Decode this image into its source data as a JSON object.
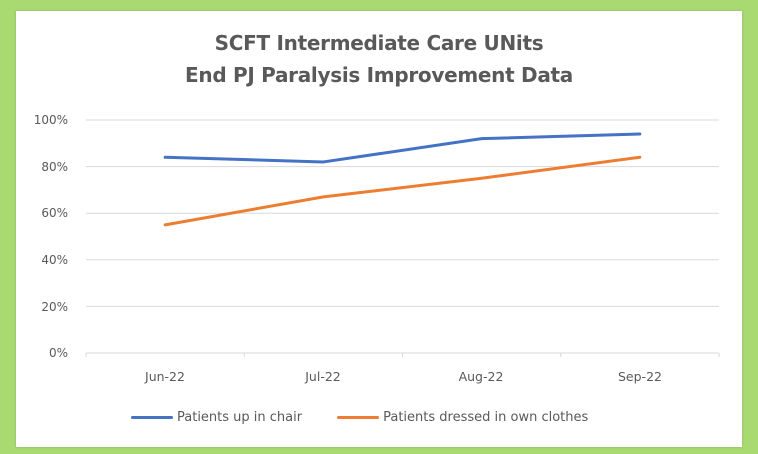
{
  "chart_data": {
    "type": "line",
    "title": "SCFT Intermediate Care UNits",
    "subtitle": "End PJ Paralysis Improvement Data",
    "title_lines": [
      "SCFT Intermediate Care UNits",
      "End PJ Paralysis Improvement Data"
    ],
    "categories": [
      "Jun-22",
      "Jul-22",
      "Aug-22",
      "Sep-22"
    ],
    "series": [
      {
        "name": "Patients up in chair",
        "color": "#4472c4",
        "values": [
          84,
          82,
          92,
          94
        ]
      },
      {
        "name": "Patients dressed in own clothes",
        "color": "#ed7d31",
        "values": [
          55,
          67,
          75,
          84
        ]
      }
    ],
    "xlabel": "",
    "ylabel": "",
    "ylim": [
      0,
      100
    ],
    "yticks": [
      "0%",
      "20%",
      "40%",
      "60%",
      "80%",
      "100%"
    ],
    "grid": true,
    "legend_position": "bottom"
  },
  "colors": {
    "background": "#a9d971",
    "panel": "#ffffff",
    "gridline": "#d9d9d9",
    "text": "#595959"
  }
}
